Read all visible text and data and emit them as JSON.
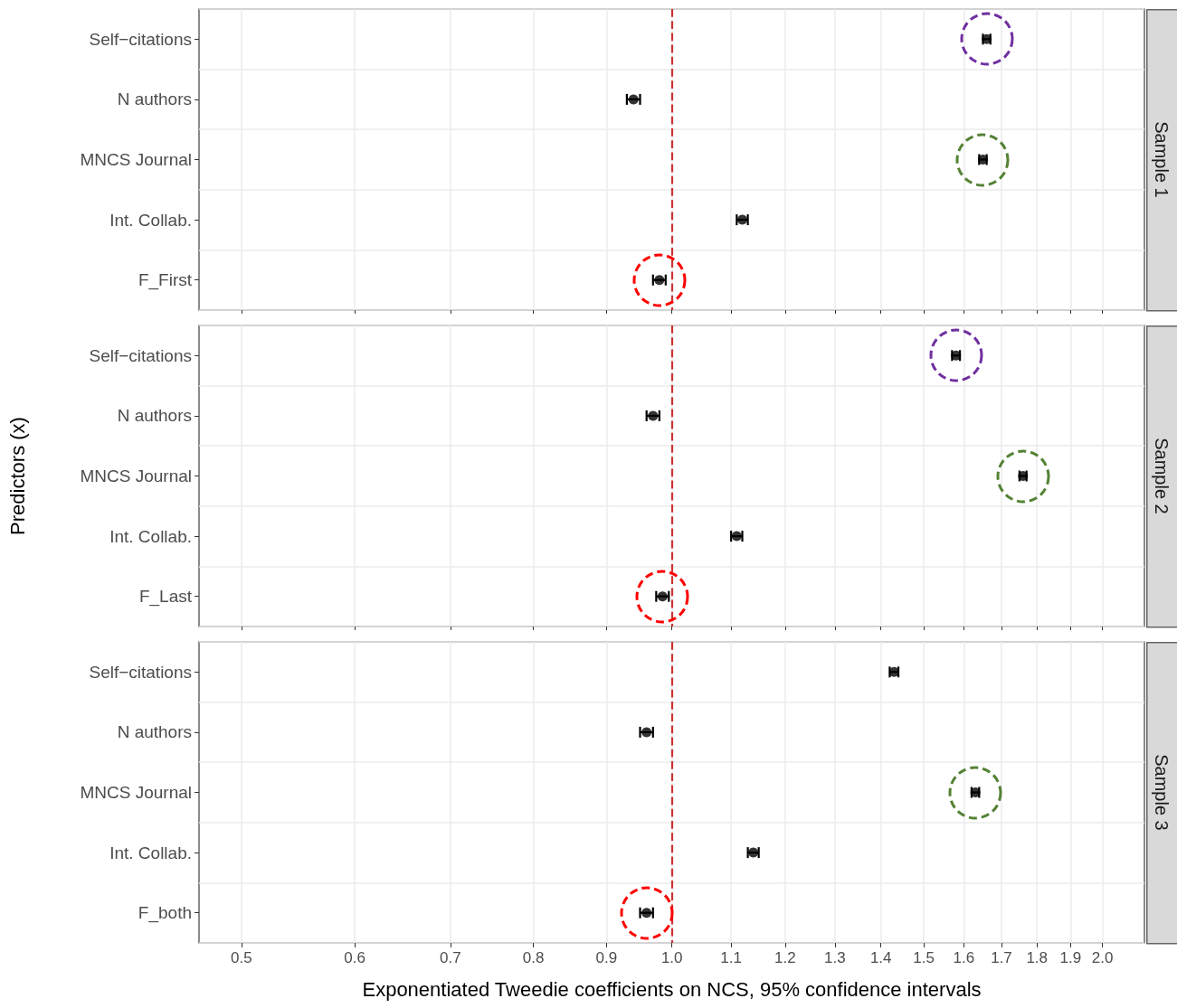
{
  "chart_data": [
    {
      "type": "scatter",
      "orientation": "horizontal",
      "title": "Sample 1",
      "categories": [
        "Self−citations",
        "N authors",
        "MNCS Journal",
        "Int. Collab.",
        "F_First"
      ],
      "series": [
        {
          "color": "#000000",
          "values": [
            1.66,
            0.94,
            1.65,
            1.12,
            0.98
          ],
          "errors": [
            0.01,
            0.01,
            0.01,
            0.01,
            0.01
          ]
        }
      ],
      "xlim": [
        0.467,
        2.14
      ],
      "xticks": [
        0.5,
        0.6,
        0.7,
        0.8,
        0.9,
        1,
        1.1,
        1.2,
        1.3,
        1.4,
        1.5,
        1.6,
        1.7,
        1.8,
        1.9,
        2
      ],
      "log": "x",
      "grid": true,
      "marker": "circle",
      "tick_labels": "y",
      "ref_lines": [
        {
          "axis": "x",
          "value": 1,
          "color": "#cc3333",
          "line_style": "dashed"
        }
      ]
    },
    {
      "type": "scatter",
      "orientation": "horizontal",
      "title": "Sample 2",
      "ylabel": "Predictors (x)",
      "categories": [
        "Self−citations",
        "N authors",
        "MNCS Journal",
        "Int. Collab.",
        "F_Last"
      ],
      "series": [
        {
          "color": "#000000",
          "values": [
            1.58,
            0.97,
            1.76,
            1.11,
            0.985
          ],
          "errors": [
            0.01,
            0.01,
            0.01,
            0.01,
            0.01
          ]
        }
      ],
      "xlim": [
        0.467,
        2.14
      ],
      "xticks": [
        0.5,
        0.6,
        0.7,
        0.8,
        0.9,
        1,
        1.1,
        1.2,
        1.3,
        1.4,
        1.5,
        1.6,
        1.7,
        1.8,
        1.9,
        2
      ],
      "log": "x",
      "grid": true,
      "marker": "circle",
      "tick_labels": "y",
      "ref_lines": [
        {
          "axis": "x",
          "value": 1,
          "color": "#cc3333",
          "line_style": "dashed"
        }
      ]
    },
    {
      "type": "scatter",
      "orientation": "horizontal",
      "title": "Sample 3",
      "xlabel": "Exponentiated Tweedie coefficients on NCS, 95% confidence intervals",
      "categories": [
        "Self−citations",
        "N authors",
        "MNCS Journal",
        "Int. Collab.",
        "F_both"
      ],
      "series": [
        {
          "color": "#000000",
          "values": [
            1.43,
            0.96,
            1.63,
            1.14,
            0.96
          ],
          "errors": [
            0.01,
            0.01,
            0.01,
            0.01,
            0.01
          ]
        }
      ],
      "xlim": [
        0.467,
        2.14
      ],
      "xticks": [
        0.5,
        0.6,
        0.7,
        0.8,
        0.9,
        {
          "value": 1,
          "label": "1.0"
        },
        1.1,
        1.2,
        1.3,
        1.4,
        1.5,
        1.6,
        1.7,
        1.8,
        1.9,
        {
          "value": 2,
          "label": "2.0"
        }
      ],
      "log": "x",
      "grid": true,
      "marker": "circle",
      "ref_lines": [
        {
          "axis": "x",
          "value": 1,
          "color": "#cc3333",
          "line_style": "dashed"
        }
      ]
    }
  ]
}
